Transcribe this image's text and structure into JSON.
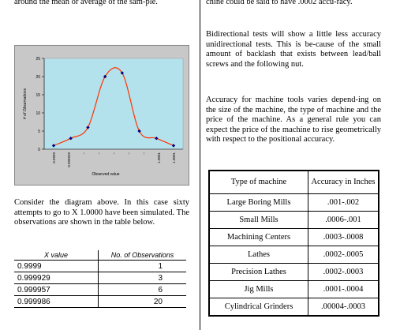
{
  "left_column": {
    "intro_fragment": "around the mean or average of the sam-ple.",
    "paragraph": "Consider the diagram above.  In this case sixty attempts to go to X 1.0000 have been simulated. The observations are shown in the table below."
  },
  "right_column": {
    "top_fragment": "chine could be said to have .0002 accu-racy.",
    "paragraph_bidirectional": "Bidirectional tests will show a little less accuracy unidirectional tests.  This is be-cause of the small amount of backlash that exists between lead/ball screws and the following nut.",
    "paragraph_accuracy": "Accuracy for machine tools varies depend-ing on the size of the machine, the type of machine and the price of the machine. As a general rule you can expect the price of the machine to rise geometrically with respect to the positional accuracy."
  },
  "observations_table": {
    "headers": [
      "X value",
      "No. of Observations"
    ],
    "rows": [
      {
        "x": "0.9999",
        "n": "1"
      },
      {
        "x": "0.999929",
        "n": "3"
      },
      {
        "x": "0.999957",
        "n": "6"
      },
      {
        "x": "0.999986",
        "n": "20"
      }
    ]
  },
  "accuracy_table": {
    "headers": [
      "Type of machine",
      "Accuracy in Inches"
    ],
    "rows": [
      {
        "type": "Large Boring Mills",
        "accuracy": ".001-.002"
      },
      {
        "type": "Small Mills",
        "accuracy": ".0006-.001"
      },
      {
        "type": "Machining Centers",
        "accuracy": ".0003-.0008"
      },
      {
        "type": "Lathes",
        "accuracy": ".0002-.0005"
      },
      {
        "type": "Precision Lathes",
        "accuracy": ".0002-.0003"
      },
      {
        "type": "Jig Mills",
        "accuracy": ".0001-.0004"
      },
      {
        "type": "Cylindrical Grinders",
        "accuracy": ".00004-.0003"
      }
    ]
  },
  "chart_data": {
    "type": "line",
    "ylabel": "# of Observations",
    "xlabel": "Observed value",
    "ylim": [
      0,
      25
    ],
    "yticks": [
      0,
      5,
      10,
      15,
      20,
      25
    ],
    "x_tick_labels": [
      "0.9999",
      "0.999929",
      "",
      "",
      "",
      "",
      "",
      "1.0001",
      "1.0001"
    ],
    "series": [
      {
        "values": [
          1,
          3,
          6,
          20,
          21,
          5,
          3,
          1
        ]
      }
    ],
    "plot_background": "#b4e2ec",
    "line_color": "#ff3300",
    "marker_color": "#000080"
  }
}
